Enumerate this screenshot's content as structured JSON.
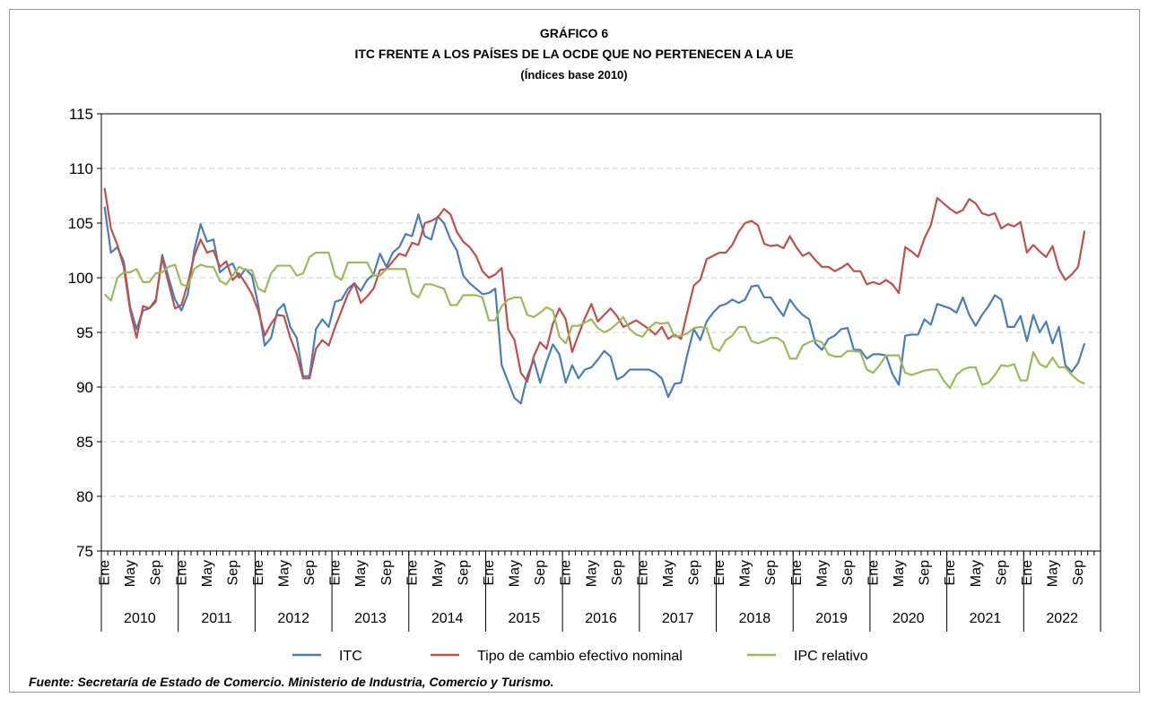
{
  "chart_data": {
    "type": "line",
    "title": "GRÁFICO 6",
    "subtitle": "ITC FRENTE A LOS PAÍSES DE LA OCDE QUE NO PERTENECEN A LA UE",
    "subtitle2": "(Índices base 2010)",
    "source": "Fuente: Secretaría de Estado de Comercio. Ministerio de Industria, Comercio y Turismo.",
    "categories": [
      "Ene",
      null,
      null,
      null,
      "May",
      null,
      null,
      null,
      "Sep",
      null,
      null,
      null,
      "Ene",
      null,
      null,
      null,
      "May",
      null,
      null,
      null,
      "Sep",
      null,
      null,
      null,
      "Ene",
      null,
      null,
      null,
      "May",
      null,
      null,
      null,
      "Sep",
      null,
      null,
      null,
      "Ene",
      null,
      null,
      null,
      "May",
      null,
      null,
      null,
      "Sep",
      null,
      null,
      null,
      "Ene",
      null,
      null,
      null,
      "May",
      null,
      null,
      null,
      "Sep",
      null,
      null,
      null,
      "Ene",
      null,
      null,
      null,
      "May",
      null,
      null,
      null,
      "Sep",
      null,
      null,
      null,
      "Ene",
      null,
      null,
      null,
      "May",
      null,
      null,
      null,
      "Sep",
      null,
      null,
      null,
      "Ene",
      null,
      null,
      null,
      "May",
      null,
      null,
      null,
      "Sep",
      null,
      null,
      null,
      "Ene",
      null,
      null,
      null,
      "May",
      null,
      null,
      null,
      "Sep",
      null,
      null,
      null,
      "Ene",
      null,
      null,
      null,
      "May",
      null,
      null,
      null,
      "Sep",
      null,
      null,
      null,
      "Ene",
      null,
      null,
      null,
      "May",
      null,
      null,
      null,
      "Sep",
      null,
      null,
      null,
      "Ene",
      null,
      null,
      null,
      "May",
      null,
      null,
      null,
      "Sep",
      null,
      null,
      null,
      "Ene",
      null,
      null,
      null,
      "May",
      null,
      null,
      null,
      "Sep",
      null,
      null,
      null
    ],
    "year_labels": [
      "2010",
      "2011",
      "2012",
      "2013",
      "2014",
      "2015",
      "2016",
      "2017",
      "2018",
      "2019",
      "2020",
      "2021",
      "2022"
    ],
    "ylim": [
      75,
      115
    ],
    "yticks": [
      75,
      80,
      85,
      90,
      95,
      100,
      105,
      110,
      115
    ],
    "grid": true,
    "legend": "bottom",
    "series": [
      {
        "name": "ITC",
        "color": "#4a7ebb",
        "values": [
          106.5,
          102.3,
          102.8,
          101.5,
          97.3,
          95.3,
          97,
          97.2,
          97.8,
          102.1,
          100,
          98,
          97,
          98.5,
          102.5,
          104.9,
          103.3,
          103.5,
          100.5,
          101,
          101.3,
          100,
          100.8,
          100.2,
          97.5,
          93.8,
          94.5,
          97,
          97.6,
          95.5,
          94.5,
          91,
          91,
          95.3,
          96.2,
          95.5,
          97.8,
          98,
          99,
          99.5,
          98.8,
          99.8,
          100.3,
          102.2,
          101,
          102.3,
          102.8,
          104,
          103.8,
          105.8,
          103.8,
          103.5,
          105.6,
          105,
          103.5,
          102.5,
          100.2,
          99.5,
          99,
          98.5,
          98.6,
          99,
          92,
          90.5,
          89,
          88.5,
          91,
          92.5,
          90.4,
          92.3,
          93.9,
          93,
          90.4,
          92,
          90.8,
          91.6,
          91.8,
          92.5,
          93.3,
          92.8,
          90.7,
          91,
          91.6,
          91.6,
          91.6,
          91.6,
          91.3,
          90.8,
          89.1,
          90.3,
          90.4,
          93,
          95.3,
          94.3,
          96,
          96.8,
          97.4,
          97.6,
          98,
          97.7,
          98,
          99.2,
          99.3,
          98.2,
          98.2,
          97.3,
          96.5,
          98,
          97.2,
          96.6,
          96.2,
          94,
          93.4,
          94.4,
          94.7,
          95.3,
          95.4,
          93.4,
          93.4,
          92.6,
          93,
          93,
          92.9,
          91.2,
          90.2,
          94.7,
          94.8,
          94.8,
          96.2,
          95.7,
          97.6,
          97.4,
          97.2,
          96.8,
          98.2,
          96.6,
          95.6,
          96.6,
          97.4,
          98.4,
          98,
          95.5,
          95.5,
          96.5,
          94.2,
          96.6,
          95,
          96,
          94,
          95.5,
          92,
          91.4,
          92.2,
          94,
          null,
          null
        ]
      },
      {
        "name": "Tipo de cambio efectivo nominal",
        "color": "#c0504d",
        "values": [
          108.2,
          104.5,
          103,
          101,
          97,
          94.5,
          97.4,
          97.2,
          98,
          101.8,
          99.5,
          97.2,
          97.5,
          99.5,
          102,
          103.5,
          102.3,
          102.5,
          101,
          101.5,
          99.8,
          100.4,
          99.5,
          98.5,
          97,
          94.7,
          95.8,
          96.6,
          96.5,
          94.5,
          93,
          90.8,
          90.8,
          93.5,
          94.3,
          93.8,
          95.5,
          97,
          98.5,
          99.5,
          97.7,
          98.3,
          99,
          100.7,
          100.8,
          101.5,
          102.2,
          102,
          103.2,
          103,
          105,
          105.2,
          105.5,
          106.3,
          105.8,
          104.2,
          103.3,
          102.8,
          102,
          100.6,
          100,
          100.3,
          100.9,
          95.3,
          94.3,
          91.3,
          90.5,
          92.8,
          94.1,
          93.5,
          95.8,
          97.2,
          96.2,
          93.2,
          94.8,
          96.3,
          97.6,
          96,
          96.6,
          97.2,
          96.5,
          95.5,
          95.8,
          96.1,
          95.7,
          95.3,
          94.8,
          95.5,
          94.4,
          94.8,
          94.4,
          96.9,
          99.3,
          99.8,
          101.7,
          102,
          102.3,
          102.3,
          103,
          104.2,
          105,
          105.2,
          104.8,
          103.1,
          102.9,
          103,
          102.7,
          103.8,
          102.8,
          102,
          102.3,
          101.6,
          101,
          101,
          100.6,
          100.9,
          101.3,
          100.6,
          100.6,
          99.4,
          99.6,
          99.4,
          99.8,
          99.4,
          98.6,
          102.8,
          102.4,
          101.9,
          103.6,
          104.8,
          107.3,
          106.8,
          106.3,
          105.9,
          106.2,
          107.2,
          106.8,
          105.9,
          105.7,
          105.9,
          104.5,
          104.9,
          104.7,
          105.1,
          102.3,
          103,
          102.4,
          101.9,
          102.9,
          100.8,
          99.8,
          100.3,
          101,
          104.3,
          null,
          null
        ]
      },
      {
        "name": "IPC relativo",
        "color": "#9bbb59",
        "values": [
          98.5,
          97.9,
          100,
          100.5,
          100.5,
          100.8,
          99.6,
          99.6,
          100.4,
          100.5,
          101,
          101.2,
          99.4,
          99.2,
          100.8,
          101.2,
          101,
          101,
          99.7,
          99.4,
          100.2,
          101,
          100.7,
          100.7,
          99,
          98.7,
          100.4,
          101.1,
          101.1,
          101.1,
          100.2,
          100.4,
          101.9,
          102.3,
          102.3,
          102.3,
          100.2,
          99.8,
          101.4,
          101.4,
          101.4,
          101.4,
          100.2,
          100.2,
          100.8,
          100.8,
          100.8,
          100.8,
          98.6,
          98.2,
          99.4,
          99.4,
          99.2,
          99,
          97.5,
          97.5,
          98.4,
          98.4,
          98.4,
          98.2,
          96.1,
          96.1,
          97.4,
          98,
          98.2,
          98.2,
          96.6,
          96.4,
          96.8,
          97.3,
          97,
          94.6,
          94,
          95.6,
          95.6,
          95.9,
          96.2,
          95.4,
          95,
          95.3,
          95.8,
          96.4,
          95.3,
          94.8,
          94.6,
          95.4,
          95.9,
          95.8,
          95.9,
          94.6,
          94.7,
          94.9,
          95.4,
          95.5,
          95.4,
          93.6,
          93.3,
          94.3,
          94.7,
          95.5,
          95.5,
          94.2,
          94,
          94.2,
          94.5,
          94.5,
          94.1,
          92.6,
          92.6,
          93.8,
          94.1,
          94.3,
          94.1,
          93,
          92.8,
          92.8,
          93.3,
          93.3,
          93.2,
          91.6,
          91.3,
          92,
          92.9,
          92.9,
          92.9,
          91.3,
          91.1,
          91.3,
          91.5,
          91.6,
          91.6,
          90.6,
          89.9,
          91.1,
          91.6,
          91.8,
          91.8,
          90.2,
          90.4,
          91.1,
          92,
          91.9,
          92.1,
          90.6,
          90.6,
          93.2,
          92.1,
          91.8,
          92.7,
          91.8,
          91.8,
          91.1,
          90.6,
          90.3,
          null,
          null
        ]
      }
    ]
  }
}
